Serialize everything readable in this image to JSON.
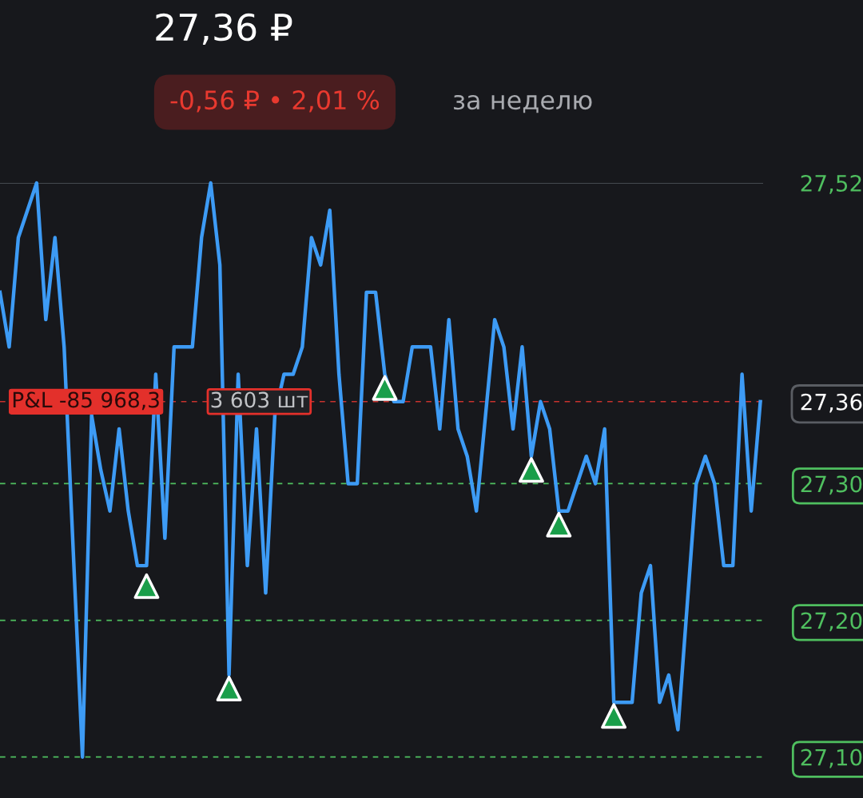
{
  "chart_data": {
    "type": "line",
    "title": "27,36 ₽",
    "subtitle": "-0,56 ₽ • 2,01 %",
    "annotations": [
      "за неделю",
      "P&L -85 968,3",
      "3 603 шт"
    ],
    "categories": [
      null,
      null,
      null,
      null,
      null,
      null,
      null,
      null,
      null,
      null,
      null,
      null,
      null,
      null,
      null,
      null,
      null,
      null,
      null,
      null,
      null,
      null,
      null,
      null,
      null,
      null,
      null,
      null,
      null,
      null,
      null,
      null,
      null,
      null,
      null,
      null,
      null,
      null,
      null,
      null,
      null,
      null,
      null,
      null,
      null,
      null,
      null,
      null,
      null,
      null,
      null,
      null,
      null,
      null,
      null,
      null,
      null,
      null,
      null,
      null,
      null,
      null,
      null,
      null,
      null,
      null,
      null,
      null,
      null,
      null,
      null,
      null,
      null,
      null,
      null,
      null,
      null,
      null,
      null,
      null,
      null,
      null,
      null,
      null
    ],
    "series": [
      {
        "color": "#3d9bf5",
        "values": [
          27.44,
          27.4,
          27.48,
          27.5,
          27.52,
          27.42,
          27.48,
          27.4,
          27.25,
          27.1,
          27.35,
          27.31,
          27.28,
          27.34,
          27.28,
          27.24,
          27.24,
          27.38,
          27.26,
          27.4,
          27.4,
          27.4,
          27.48,
          27.52,
          27.46,
          27.16,
          27.38,
          27.24,
          27.34,
          27.22,
          27.35,
          27.38,
          27.38,
          27.4,
          27.48,
          27.46,
          27.5,
          27.38,
          27.3,
          27.3,
          27.44,
          27.44,
          27.38,
          27.36,
          27.36,
          27.4,
          27.4,
          27.4,
          27.34,
          27.42,
          27.34,
          27.32,
          27.28,
          27.35,
          27.42,
          27.4,
          27.34,
          27.4,
          27.32,
          27.36,
          27.34,
          27.28,
          27.28,
          27.3,
          27.32,
          27.3,
          27.34,
          27.14,
          27.14,
          27.14,
          27.22,
          27.24,
          27.14,
          27.16,
          27.12,
          27.21,
          27.3,
          27.32,
          27.3,
          27.24,
          27.24,
          27.38,
          27.28,
          27.36
        ]
      },
      {
        "type": "scatter",
        "color": "#1a9e4a",
        "marker": "triangle",
        "values": [
          null,
          null,
          null,
          null,
          null,
          null,
          null,
          null,
          null,
          null,
          null,
          null,
          null,
          null,
          null,
          null,
          27.225,
          null,
          null,
          null,
          null,
          null,
          null,
          null,
          null,
          27.15,
          null,
          null,
          null,
          null,
          null,
          null,
          null,
          null,
          null,
          null,
          null,
          null,
          null,
          null,
          null,
          null,
          27.37,
          null,
          null,
          null,
          null,
          null,
          null,
          null,
          null,
          null,
          null,
          null,
          null,
          null,
          null,
          null,
          27.31,
          null,
          null,
          27.27,
          null,
          null,
          null,
          null,
          null,
          27.13,
          null,
          null,
          null,
          null,
          null,
          null,
          null,
          null,
          null,
          null,
          null,
          null,
          null,
          null,
          null,
          null
        ]
      }
    ],
    "ylim": [
      27.07,
      27.52
    ],
    "tick_labels": "y",
    "yticks": [
      {
        "value": 27.1,
        "label": "27,10"
      },
      {
        "value": 27.2,
        "label": "27,20"
      },
      {
        "value": 27.3,
        "label": "27,30"
      },
      {
        "value": 27.36,
        "label": "27,36"
      },
      {
        "value": 27.52,
        "label": "27,52"
      }
    ],
    "ref_lines": [
      {
        "axis": "y",
        "value": 27.52,
        "color": "#555a60",
        "line_style": "solid"
      },
      {
        "axis": "y",
        "value": 27.36,
        "color": "#c8332e",
        "line_style": "dashed"
      },
      {
        "axis": "y",
        "value": 27.3,
        "color": "#4fbf5f",
        "line_style": "dashed"
      },
      {
        "axis": "y",
        "value": 27.2,
        "color": "#4fbf5f",
        "line_style": "dashed"
      },
      {
        "axis": "y",
        "value": 27.1,
        "color": "#4fbf5f",
        "line_style": "dashed"
      }
    ]
  }
}
